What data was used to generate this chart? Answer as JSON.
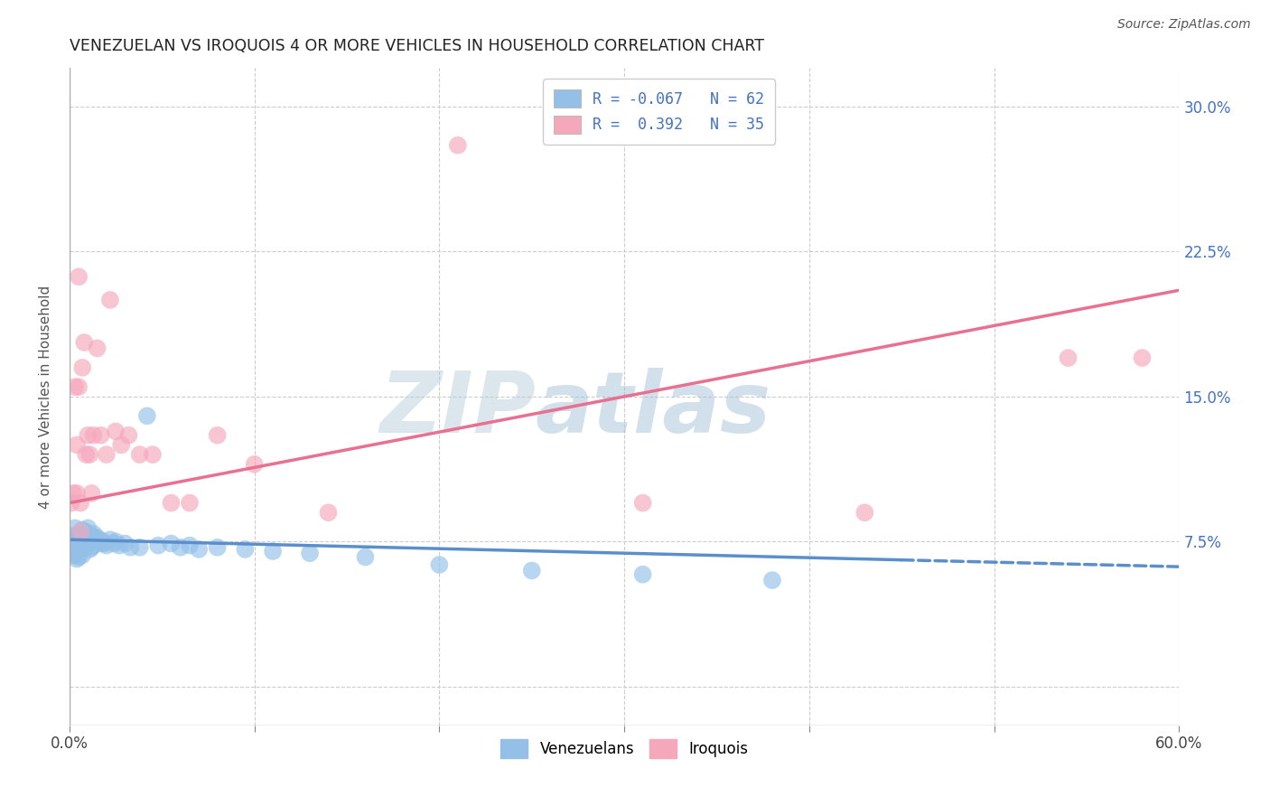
{
  "title": "VENEZUELAN VS IROQUOIS 4 OR MORE VEHICLES IN HOUSEHOLD CORRELATION CHART",
  "source": "Source: ZipAtlas.com",
  "ylabel": "4 or more Vehicles in Household",
  "x_min": 0.0,
  "x_max": 0.6,
  "y_min": -0.02,
  "y_max": 0.32,
  "x_ticks": [
    0.0,
    0.1,
    0.2,
    0.3,
    0.4,
    0.5,
    0.6
  ],
  "x_tick_labels_show": [
    "0.0%",
    "",
    "",
    "",
    "",
    "",
    "60.0%"
  ],
  "y_ticks": [
    0.0,
    0.075,
    0.15,
    0.225,
    0.3
  ],
  "y_tick_labels": [
    "",
    "7.5%",
    "15.0%",
    "22.5%",
    "30.0%"
  ],
  "legend_entry1": "R = -0.067   N = 62",
  "legend_entry2": "R =  0.392   N = 35",
  "legend_label1": "Venezuelans",
  "legend_label2": "Iroquois",
  "color_blue": "#94C0E8",
  "color_pink": "#F5A8BC",
  "color_blue_line": "#5B8FCC",
  "color_pink_line": "#E87090",
  "watermark1": "ZIP",
  "watermark2": "atlas",
  "venezuelan_x": [
    0.001,
    0.001,
    0.001,
    0.002,
    0.002,
    0.002,
    0.003,
    0.003,
    0.003,
    0.003,
    0.004,
    0.004,
    0.004,
    0.005,
    0.005,
    0.005,
    0.006,
    0.006,
    0.007,
    0.007,
    0.007,
    0.008,
    0.008,
    0.009,
    0.009,
    0.01,
    0.01,
    0.011,
    0.011,
    0.012,
    0.012,
    0.013,
    0.013,
    0.014,
    0.015,
    0.016,
    0.017,
    0.018,
    0.019,
    0.02,
    0.022,
    0.024,
    0.025,
    0.027,
    0.03,
    0.033,
    0.038,
    0.042,
    0.048,
    0.055,
    0.06,
    0.065,
    0.07,
    0.08,
    0.095,
    0.11,
    0.13,
    0.16,
    0.2,
    0.25,
    0.31,
    0.38
  ],
  "venezuelan_y": [
    0.075,
    0.072,
    0.07,
    0.078,
    0.073,
    0.068,
    0.082,
    0.077,
    0.074,
    0.068,
    0.078,
    0.072,
    0.066,
    0.079,
    0.073,
    0.067,
    0.077,
    0.072,
    0.081,
    0.075,
    0.068,
    0.078,
    0.072,
    0.08,
    0.073,
    0.082,
    0.074,
    0.077,
    0.071,
    0.078,
    0.072,
    0.079,
    0.073,
    0.076,
    0.077,
    0.076,
    0.074,
    0.075,
    0.074,
    0.073,
    0.076,
    0.074,
    0.075,
    0.073,
    0.074,
    0.072,
    0.072,
    0.14,
    0.073,
    0.074,
    0.072,
    0.073,
    0.071,
    0.072,
    0.071,
    0.07,
    0.069,
    0.067,
    0.063,
    0.06,
    0.058,
    0.055
  ],
  "iroquois_x": [
    0.001,
    0.002,
    0.003,
    0.004,
    0.004,
    0.005,
    0.005,
    0.006,
    0.006,
    0.007,
    0.008,
    0.009,
    0.01,
    0.011,
    0.012,
    0.013,
    0.015,
    0.017,
    0.02,
    0.022,
    0.025,
    0.028,
    0.032,
    0.038,
    0.045,
    0.055,
    0.065,
    0.08,
    0.1,
    0.14,
    0.21,
    0.31,
    0.43,
    0.54,
    0.58
  ],
  "iroquois_y": [
    0.095,
    0.1,
    0.155,
    0.125,
    0.1,
    0.212,
    0.155,
    0.095,
    0.08,
    0.165,
    0.178,
    0.12,
    0.13,
    0.12,
    0.1,
    0.13,
    0.175,
    0.13,
    0.12,
    0.2,
    0.132,
    0.125,
    0.13,
    0.12,
    0.12,
    0.095,
    0.095,
    0.13,
    0.115,
    0.09,
    0.28,
    0.095,
    0.09,
    0.17,
    0.17
  ],
  "blue_line_x": [
    0.0,
    0.6
  ],
  "blue_line_y_solid_end": 0.45,
  "blue_line_y": [
    0.076,
    0.062
  ],
  "pink_line_x": [
    0.0,
    0.6
  ],
  "pink_line_y": [
    0.095,
    0.205
  ]
}
